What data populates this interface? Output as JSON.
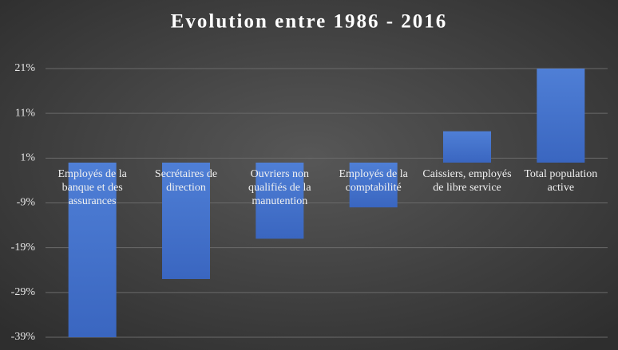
{
  "chart_data": {
    "type": "bar",
    "title": "Evolution entre 1986 - 2016",
    "categories": [
      "Employés de la banque et des assurances",
      "Secrétaires de direction",
      "Ouvriers non qualifiés de la manutention",
      "Employés de la comptabilité",
      "Caissiers, employés de libre service",
      "Total population active"
    ],
    "values": [
      -39,
      -26,
      -17,
      -10,
      7,
      21
    ],
    "color": "#4472c4",
    "ylim": [
      -39,
      21
    ],
    "yticks": [
      {
        "value": -39,
        "label": "-39%"
      },
      {
        "value": -29,
        "label": "-29%"
      },
      {
        "value": -19,
        "label": "-19%"
      },
      {
        "value": -9,
        "label": "-9%"
      },
      {
        "value": 1,
        "label": "1%"
      },
      {
        "value": 11,
        "label": "11%"
      },
      {
        "value": 21,
        "label": "21%"
      }
    ],
    "grid": true
  }
}
